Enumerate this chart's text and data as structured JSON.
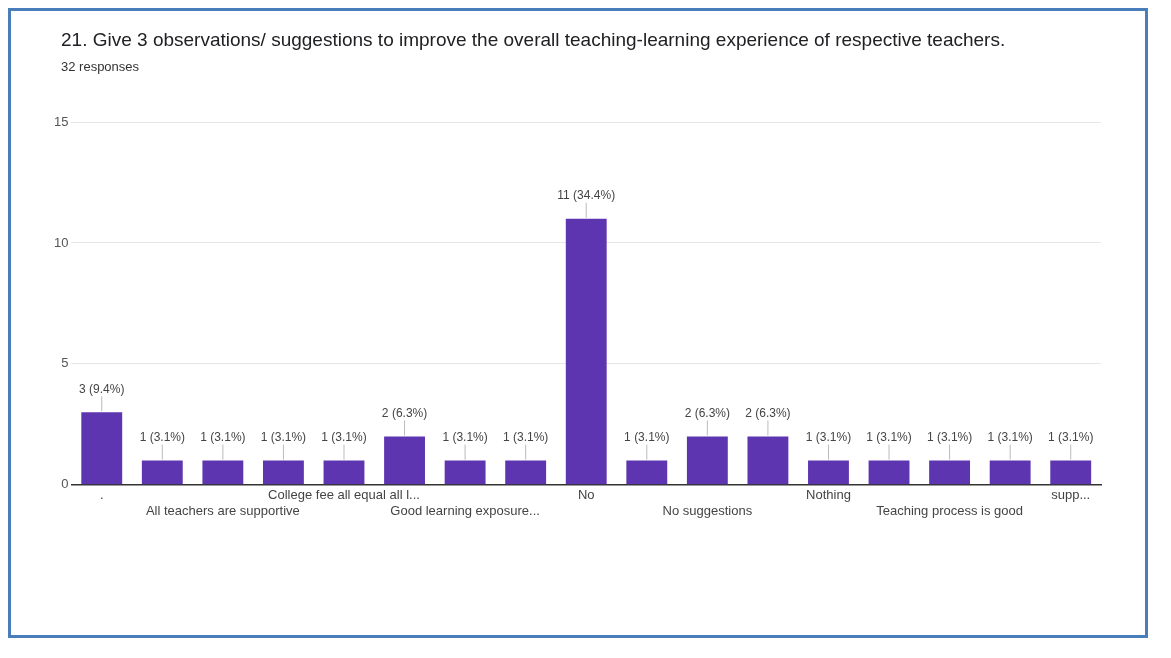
{
  "chart_data": {
    "type": "bar",
    "title": "21. Give 3 observations/ suggestions to improve the overall teaching-learning experience of respective teachers.",
    "subtitle": "32 responses",
    "categories": [
      ".",
      null,
      "All teachers are supportive",
      null,
      "College fee all equal all l...",
      null,
      "Good learning exposure...",
      null,
      "No",
      null,
      "No suggestions",
      null,
      "Nothing",
      null,
      "Teaching process is good",
      null,
      "supp..."
    ],
    "values": [
      3,
      1,
      1,
      1,
      1,
      2,
      1,
      1,
      11,
      1,
      2,
      2,
      1,
      1,
      1,
      1,
      1
    ],
    "value_labels": [
      "3 (9.4%)",
      "1 (3.1%)",
      "1 (3.1%)",
      "1 (3.1%)",
      "1 (3.1%)",
      "2 (6.3%)",
      "1 (3.1%)",
      "1 (3.1%)",
      "11 (34.4%)",
      "1 (3.1%)",
      "2 (6.3%)",
      "2 (6.3%)",
      "1 (3.1%)",
      "1 (3.1%)",
      "1 (3.1%)",
      "1 (3.1%)",
      "1 (3.1%)"
    ],
    "color": "#5e35b1",
    "ylim": [
      0,
      15
    ],
    "yticks": [
      0,
      5,
      10,
      15
    ],
    "grid": "y",
    "legend": false
  }
}
